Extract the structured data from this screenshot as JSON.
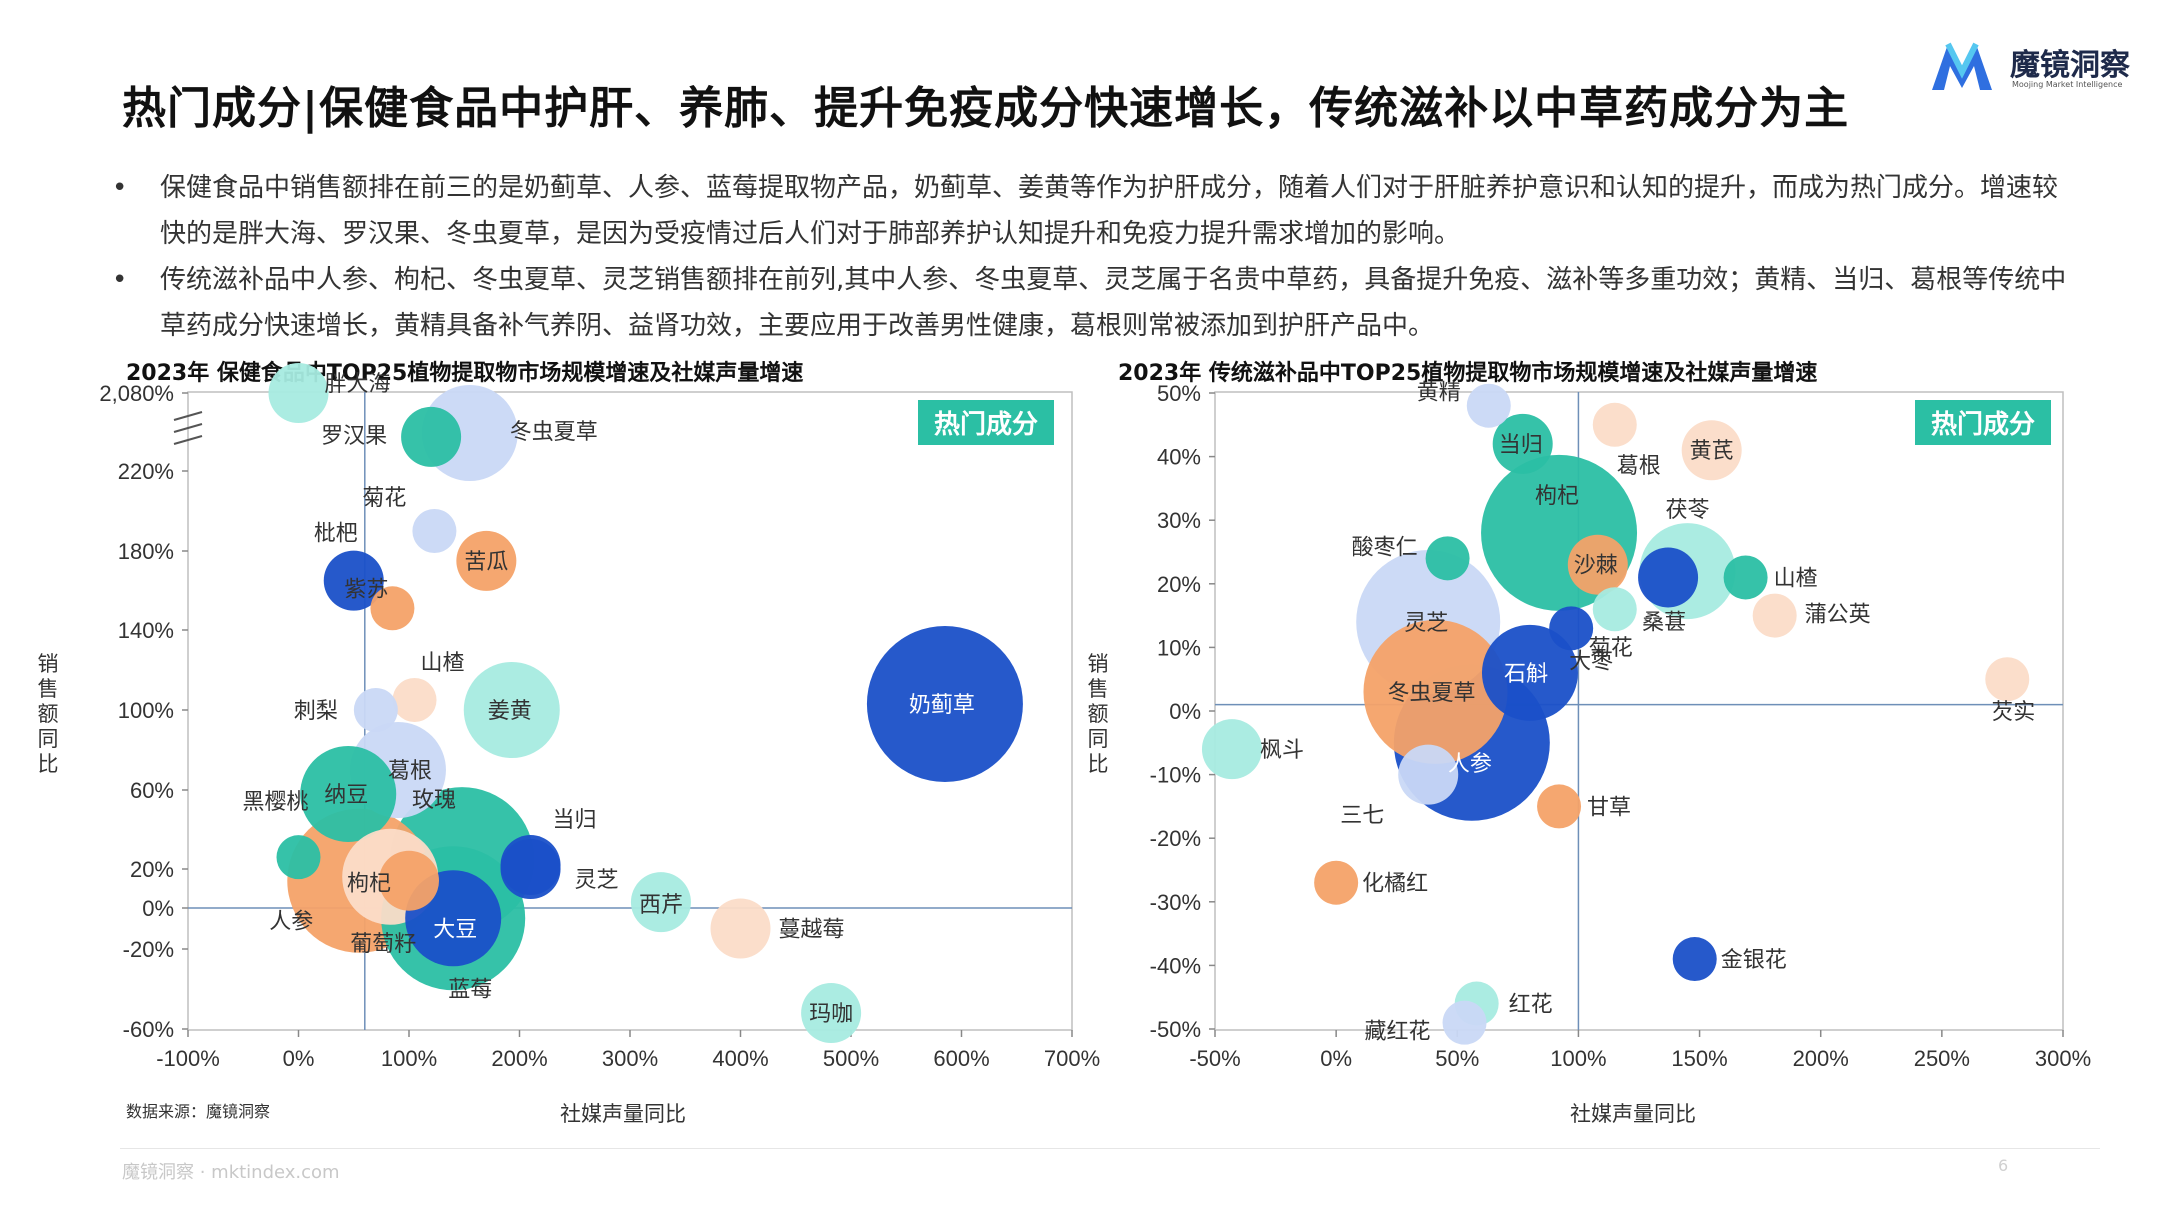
{
  "page": {
    "title": "热门成分|保健食品中护肝、养肺、提升免疫成分快速增长，传统滋补以中草药成分为主",
    "logo_name": "魔镜洞察",
    "logo_sub": "Moojing Market Intelligence",
    "bullets": [
      "保健食品中销售额排在前三的是奶蓟草、人参、蓝莓提取物产品，奶蓟草、姜黄等作为护肝成分，随着人们对于肝脏养护意识和认知的提升，而成为热门成分。增速较快的是胖大海、罗汉果、冬虫夏草，是因为受疫情过后人们对于肺部养护认知提升和免疫力提升需求增加的影响。",
      "传统滋补品中人参、枸杞、冬虫夏草、灵芝销售额排在前列,其中人参、冬虫夏草、灵芝属于名贵中草药，具备提升免疫、滋补等多重功效；黄精、当归、葛根等传统中草药成分快速增长，黄精具备补气养阴、益肾功效，主要应用于改善男性健康，葛根则常被添加到护肝产品中。"
    ],
    "source": "数据来源：魔镜洞察",
    "footer": "魔镜洞察 · mktindex.com",
    "page_number": "6"
  },
  "colors": {
    "teal": "#2bbfa4",
    "blue": "#1a50c8",
    "orange": "#f4a268",
    "light_blue": "#c9d8f5",
    "light_teal": "#a6ebe0",
    "peach": "#fbdcc8"
  },
  "chart_data": [
    {
      "type": "scatter",
      "title": "2023年 保健食品中TOP25植物提取物市场规模增速及社媒声量增速",
      "xlabel": "社媒声量同比",
      "ylabel": "销售额同比",
      "badge": "热门成分",
      "xlim": [
        -100,
        700
      ],
      "x_ticks": [
        "-100%",
        "0%",
        "100%",
        "200%",
        "300%",
        "400%",
        "500%",
        "600%",
        "700%"
      ],
      "y_ticks": [
        "2,080%",
        "220%",
        "180%",
        "140%",
        "100%",
        "60%",
        "20%",
        "0%",
        "-20%",
        "-60%"
      ],
      "axis_break": "2,080% 与 220% 之间断轴",
      "points": [
        {
          "name": "胖大海",
          "x": 0,
          "y": 2080,
          "color": "light_teal",
          "size": "s"
        },
        {
          "name": "冬虫夏草",
          "x": 155,
          "y": 2000,
          "color": "light_blue",
          "size": "m"
        },
        {
          "name": "罗汉果",
          "x": 120,
          "y": 1000,
          "color": "teal",
          "size": "s"
        },
        {
          "name": "菊花",
          "x": 123,
          "y": 190,
          "color": "light_blue",
          "size": "xs"
        },
        {
          "name": "苦瓜",
          "x": 170,
          "y": 175,
          "color": "orange",
          "size": "s"
        },
        {
          "name": "枇杷",
          "x": 50,
          "y": 165,
          "color": "blue",
          "size": "s"
        },
        {
          "name": "紫苏",
          "x": 85,
          "y": 151,
          "color": "orange",
          "size": "xs"
        },
        {
          "name": "山楂",
          "x": 105,
          "y": 105,
          "color": "peach",
          "size": "xs"
        },
        {
          "name": "姜黄",
          "x": 193,
          "y": 100,
          "color": "light_teal",
          "size": "m"
        },
        {
          "name": "奶蓟草",
          "x": 585,
          "y": 103,
          "color": "blue",
          "size": "xl"
        },
        {
          "name": "刺梨",
          "x": 70,
          "y": 100,
          "color": "light_blue",
          "size": "xs"
        },
        {
          "name": "葛根",
          "x": 90,
          "y": 70,
          "color": "light_blue",
          "size": "m"
        },
        {
          "name": "纳豆",
          "x": 45,
          "y": 58,
          "color": "teal",
          "size": "m"
        },
        {
          "name": "黑樱桃",
          "x": 0,
          "y": 26,
          "color": "teal",
          "size": "xs"
        },
        {
          "name": "玫瑰",
          "x": 148,
          "y": 25,
          "color": "teal",
          "size": "l"
        },
        {
          "name": "当归",
          "x": 210,
          "y": 22,
          "color": "blue",
          "size": "s"
        },
        {
          "name": "灵芝",
          "x": 210,
          "y": 20,
          "color": "blue",
          "size": "s"
        },
        {
          "name": "枸杞",
          "x": 100,
          "y": 14,
          "color": "orange",
          "size": "s"
        },
        {
          "name": "人参",
          "x": 55,
          "y": 14,
          "color": "orange",
          "size": "l"
        },
        {
          "name": "葡萄籽",
          "x": 83,
          "y": 16,
          "color": "peach",
          "size": "m"
        },
        {
          "name": "大豆",
          "x": 140,
          "y": -5,
          "color": "blue",
          "size": "m"
        },
        {
          "name": "蓝莓",
          "x": 140,
          "y": -5,
          "color": "teal",
          "size": "l"
        },
        {
          "name": "西芹",
          "x": 328,
          "y": 3,
          "color": "light_teal",
          "size": "s"
        },
        {
          "name": "蔓越莓",
          "x": 400,
          "y": -10,
          "color": "peach",
          "size": "s"
        },
        {
          "name": "玛咖",
          "x": 482,
          "y": -52,
          "color": "light_teal",
          "size": "s"
        }
      ]
    },
    {
      "type": "scatter",
      "title": "2023年 传统滋补品中TOP25植物提取物市场规模增速及社媒声量增速",
      "xlabel": "社媒声量同比",
      "ylabel": "销售额同比",
      "badge": "热门成分",
      "xlim": [
        -50,
        300
      ],
      "ylim": [
        -50,
        50
      ],
      "x_ticks": [
        "-50%",
        "0%",
        "50%",
        "100%",
        "150%",
        "200%",
        "250%",
        "300%"
      ],
      "y_ticks": [
        "50%",
        "40%",
        "30%",
        "20%",
        "10%",
        "0%",
        "-10%",
        "-20%",
        "-30%",
        "-40%",
        "-50%"
      ],
      "points": [
        {
          "name": "黄精",
          "x": 63,
          "y": 48,
          "color": "light_blue",
          "size": "xs"
        },
        {
          "name": "当归",
          "x": 77,
          "y": 42,
          "color": "teal",
          "size": "s"
        },
        {
          "name": "葛根",
          "x": 115,
          "y": 45,
          "color": "peach",
          "size": "xs"
        },
        {
          "name": "黄芪",
          "x": 155,
          "y": 41,
          "color": "peach",
          "size": "s"
        },
        {
          "name": "枸杞",
          "x": 92,
          "y": 28,
          "color": "teal",
          "size": "xl"
        },
        {
          "name": "茯苓",
          "x": 145,
          "y": 22,
          "color": "light_teal",
          "size": "m"
        },
        {
          "name": "酸枣仁",
          "x": 46,
          "y": 24,
          "color": "teal",
          "size": "xs"
        },
        {
          "name": "沙棘",
          "x": 108,
          "y": 23,
          "color": "orange",
          "size": "s"
        },
        {
          "name": "桑葚",
          "x": 137,
          "y": 21,
          "color": "blue",
          "size": "s"
        },
        {
          "name": "山楂",
          "x": 169,
          "y": 21,
          "color": "teal",
          "size": "xs"
        },
        {
          "name": "菊花",
          "x": 115,
          "y": 16,
          "color": "light_teal",
          "size": "xs"
        },
        {
          "name": "蒲公英",
          "x": 181,
          "y": 15,
          "color": "peach",
          "size": "xs"
        },
        {
          "name": "大枣",
          "x": 97,
          "y": 13,
          "color": "blue",
          "size": "xs"
        },
        {
          "name": "灵芝",
          "x": 38,
          "y": 14,
          "color": "light_blue",
          "size": "l"
        },
        {
          "name": "石斛",
          "x": 80,
          "y": 6,
          "color": "blue",
          "size": "m"
        },
        {
          "name": "冬虫夏草",
          "x": 41,
          "y": 3,
          "color": "orange",
          "size": "l"
        },
        {
          "name": "芡实",
          "x": 277,
          "y": 5,
          "color": "peach",
          "size": "xs"
        },
        {
          "name": "枫斗",
          "x": -43,
          "y": -6,
          "color": "light_teal",
          "size": "s"
        },
        {
          "name": "人参",
          "x": 56,
          "y": -5,
          "color": "blue",
          "size": "xl"
        },
        {
          "name": "三七",
          "x": 38,
          "y": -10,
          "color": "light_blue",
          "size": "s"
        },
        {
          "name": "甘草",
          "x": 92,
          "y": -15,
          "color": "orange",
          "size": "xs"
        },
        {
          "name": "化橘红",
          "x": 0,
          "y": -27,
          "color": "orange",
          "size": "xs"
        },
        {
          "name": "金银花",
          "x": 148,
          "y": -39,
          "color": "blue",
          "size": "xs"
        },
        {
          "name": "红花",
          "x": 58,
          "y": -46,
          "color": "light_teal",
          "size": "xs"
        },
        {
          "name": "藏红花",
          "x": 53,
          "y": -49,
          "color": "light_blue",
          "size": "xs"
        }
      ]
    }
  ]
}
